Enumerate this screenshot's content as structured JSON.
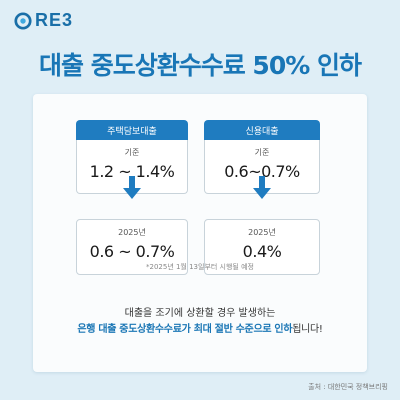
{
  "brand": {
    "logo_text": "RE3",
    "accent_color": "#1f7cc0"
  },
  "headline": "대출 중도상환수수료 50% 인하",
  "columns": [
    {
      "header": "주택담보대출",
      "current_label": "기준",
      "current_value": "1.2 ~ 1.4%",
      "future_label": "2025년",
      "future_value": "0.6 ~ 0.7%"
    },
    {
      "header": "신용대출",
      "current_label": "기준",
      "current_value": "0.6~0.7%",
      "future_label": "2025년",
      "future_value": "0.4%"
    }
  ],
  "footnote": "*2025년 1월 13일부터 시행될 예정",
  "description": {
    "line1": "대출을 조기에 상환할 경우 발생하는",
    "line2_highlight": "은행 대출 중도상환수수료가 최대 절반 수준으로 인하",
    "line2_suffix": "됩니다!"
  },
  "source": "출처 : 대한민국 정책브리핑",
  "icons": {
    "logo": "logo-mark-icon",
    "arrow": "arrow-down-icon"
  }
}
